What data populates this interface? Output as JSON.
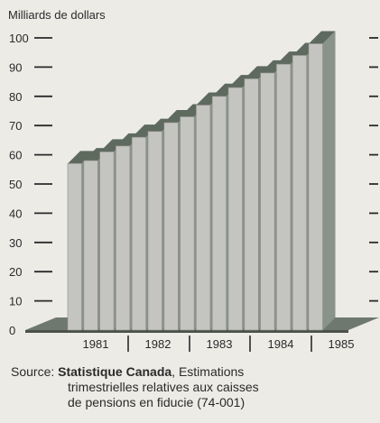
{
  "chart_data": {
    "type": "bar",
    "ylabel": "Milliards de dollars",
    "ylim": [
      0,
      100
    ],
    "yticks": [
      "0",
      "10",
      "20",
      "30",
      "40",
      "50",
      "60",
      "70",
      "80",
      "90",
      "100"
    ],
    "years": [
      "1981",
      "1982",
      "1983",
      "1984",
      "1985"
    ],
    "values": [
      57,
      58,
      61,
      63,
      66,
      68,
      71,
      73,
      77,
      80,
      83,
      86,
      88,
      91,
      94,
      98
    ],
    "colors": {
      "bar_front": "#c4c4c0",
      "bar_top": "#5f6a5f",
      "bar_side": "#8a938a",
      "base": "#6f786f"
    }
  },
  "source": {
    "label": "Source:",
    "org": "Statistique Canada",
    "line1": ", Estimations",
    "line2": "trimestrielles relatives aux caisses",
    "line3": "de pensions en fiducie (74-001)"
  }
}
